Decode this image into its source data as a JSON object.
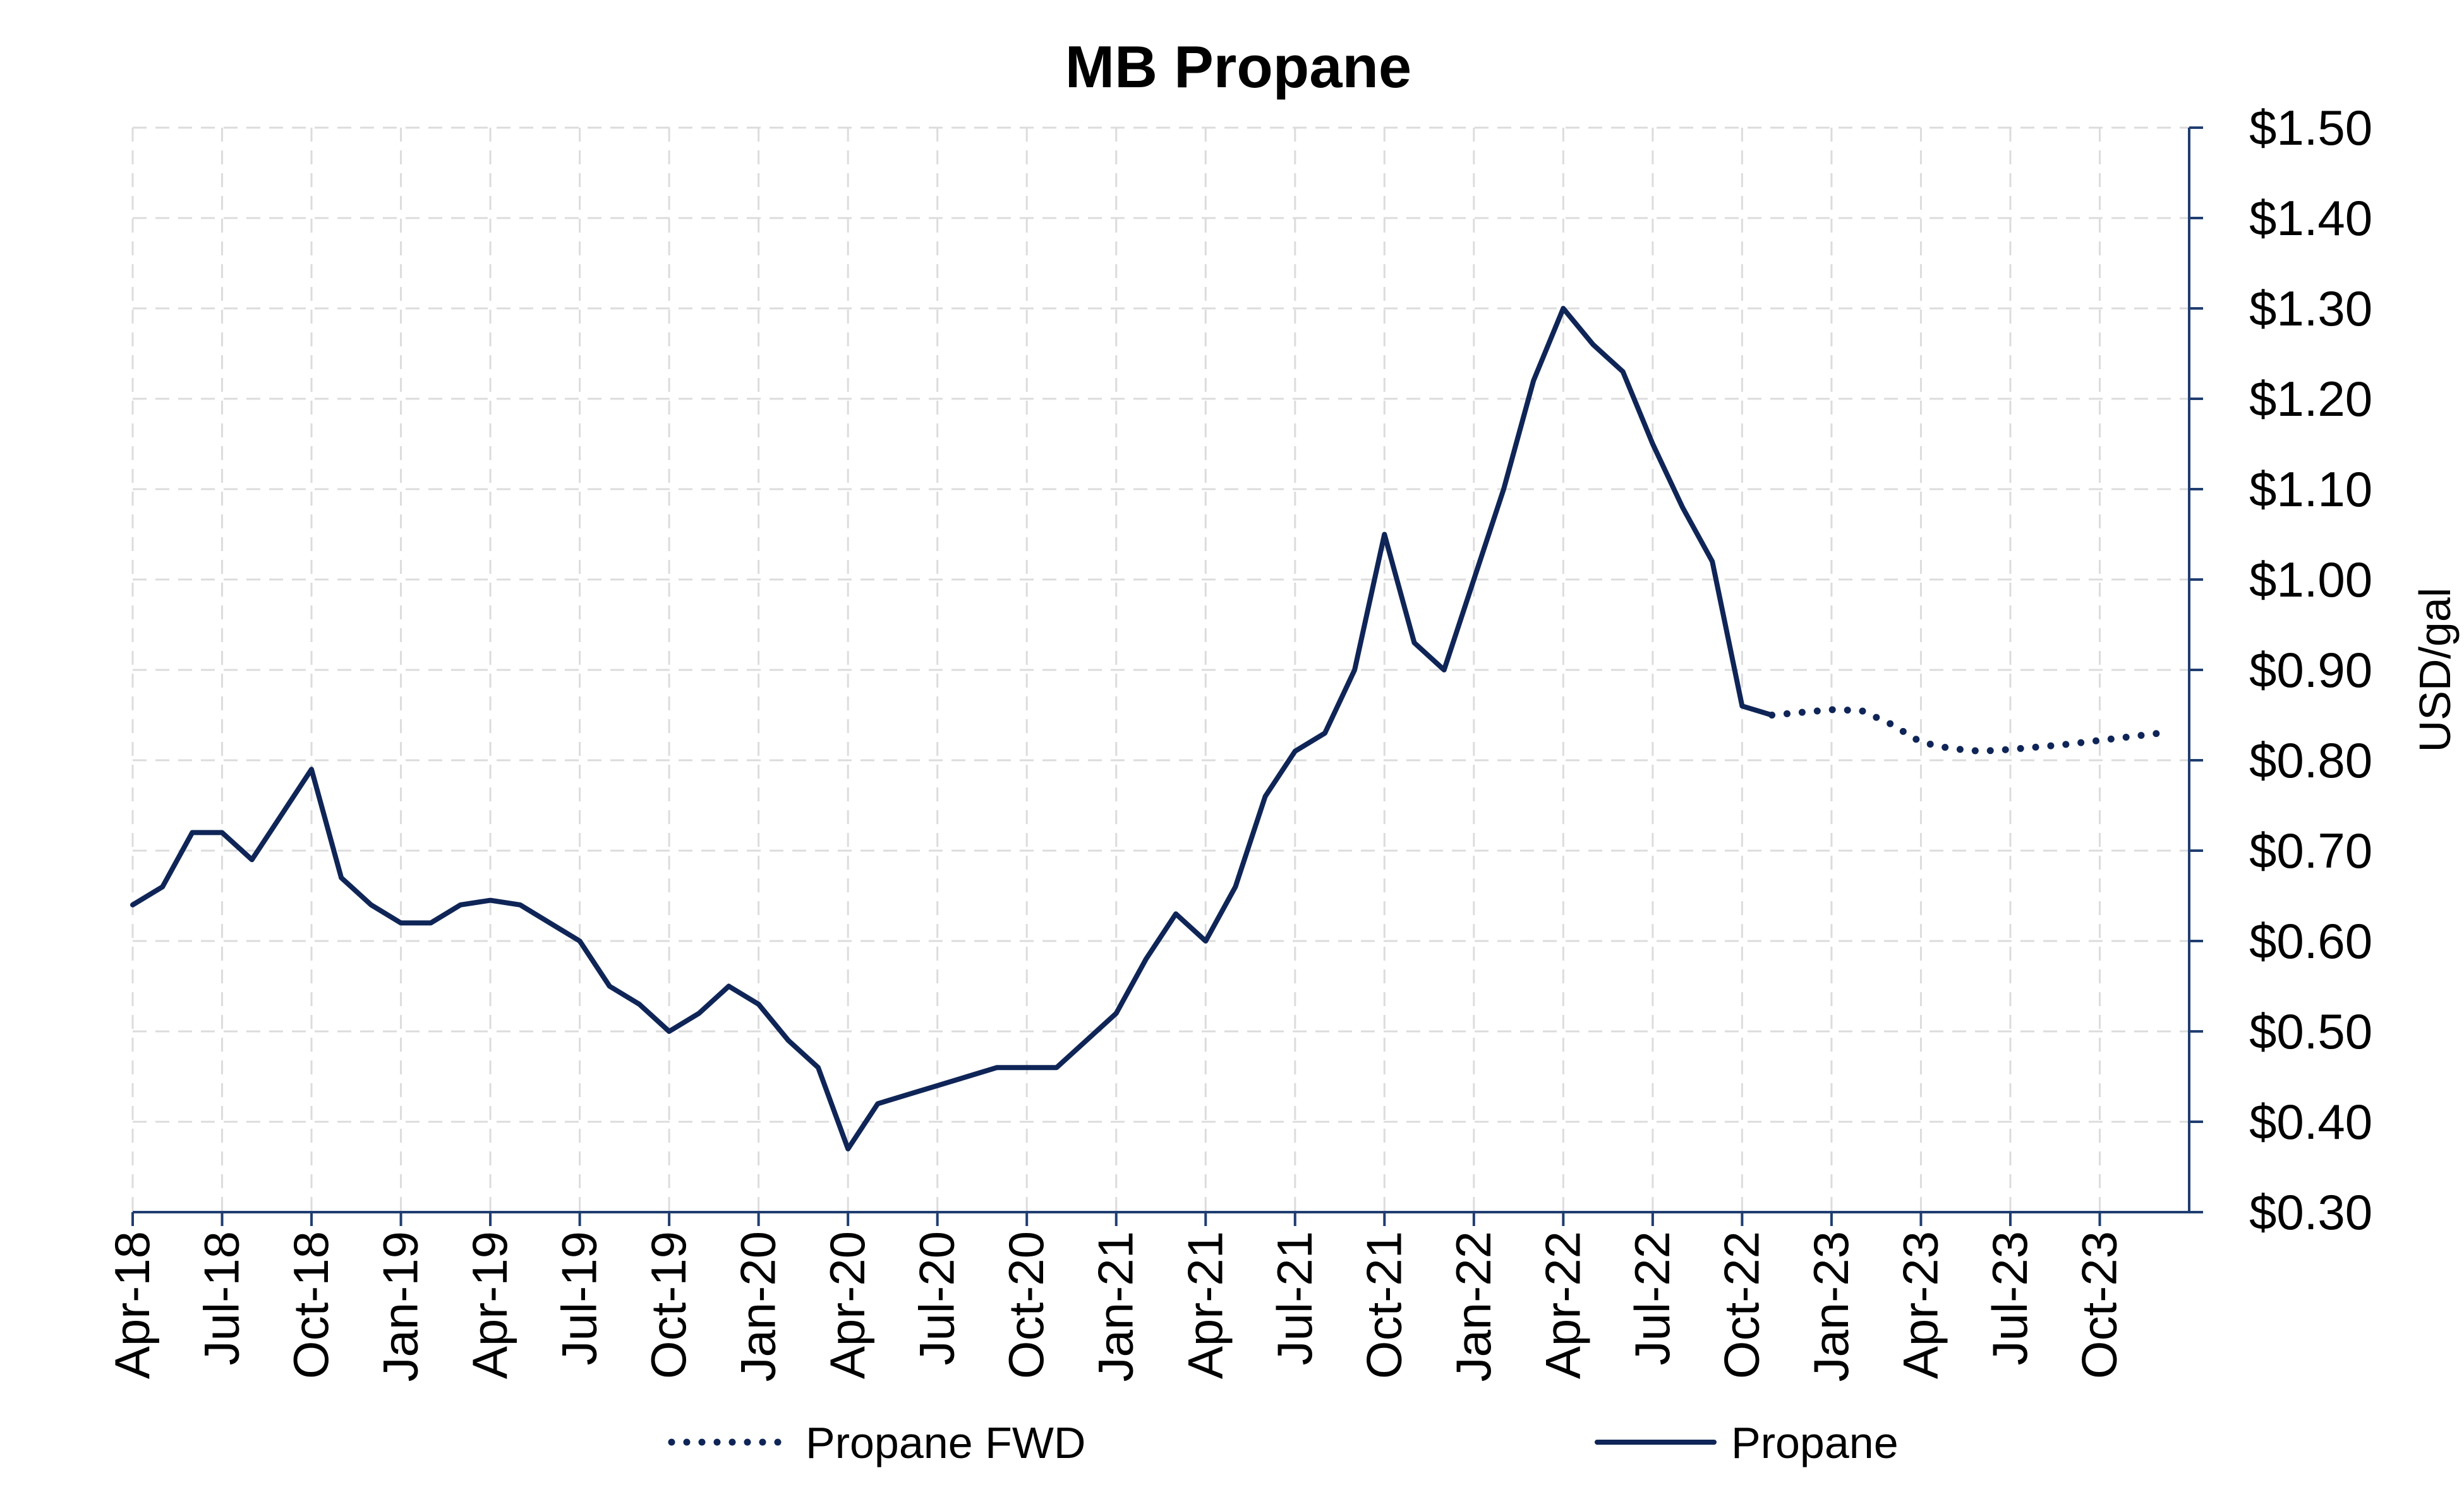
{
  "chart_data": {
    "type": "line",
    "title": "MB Propane",
    "ylabel": "USD/gal",
    "xlabel": "",
    "ylim": [
      0.3,
      1.5
    ],
    "xlim": [
      "2018-04",
      "2024-01"
    ],
    "y_axis_side": "right",
    "grid": true,
    "legend_position": "bottom",
    "y_ticks": [
      "$0.30",
      "$0.40",
      "$0.50",
      "$0.60",
      "$0.70",
      "$0.80",
      "$0.90",
      "$1.00",
      "$1.10",
      "$1.20",
      "$1.30",
      "$1.40",
      "$1.50"
    ],
    "x_ticks": [
      "Apr-18",
      "Jul-18",
      "Oct-18",
      "Jan-19",
      "Apr-19",
      "Jul-19",
      "Oct-19",
      "Jan-20",
      "Apr-20",
      "Jul-20",
      "Oct-20",
      "Jan-21",
      "Apr-21",
      "Jul-21",
      "Oct-21",
      "Jan-22",
      "Apr-22",
      "Jul-22",
      "Oct-22",
      "Jan-23",
      "Apr-23",
      "Jul-23",
      "Oct-23"
    ],
    "series": [
      {
        "name": "Propane FWD",
        "style": "dotted",
        "color": "#0f2557",
        "x": [
          "2022-11",
          "2022-12",
          "2023-01",
          "2023-02",
          "2023-03",
          "2023-04",
          "2023-05",
          "2023-06",
          "2023-07",
          "2023-08",
          "2023-09",
          "2023-10",
          "2023-11",
          "2023-12"
        ],
        "values": [
          0.85,
          0.853,
          0.856,
          0.855,
          0.84,
          0.82,
          0.813,
          0.81,
          0.812,
          0.815,
          0.818,
          0.822,
          0.826,
          0.83
        ]
      },
      {
        "name": "Propane",
        "style": "solid",
        "color": "#0f2557",
        "x": [
          "2018-04",
          "2018-05",
          "2018-06",
          "2018-07",
          "2018-08",
          "2018-09",
          "2018-10",
          "2018-11",
          "2018-12",
          "2019-01",
          "2019-02",
          "2019-03",
          "2019-04",
          "2019-05",
          "2019-06",
          "2019-07",
          "2019-08",
          "2019-09",
          "2019-10",
          "2019-11",
          "2019-12",
          "2020-01",
          "2020-02",
          "2020-03",
          "2020-04",
          "2020-05",
          "2020-06",
          "2020-07",
          "2020-08",
          "2020-09",
          "2020-10",
          "2020-11",
          "2020-12",
          "2021-01",
          "2021-02",
          "2021-03",
          "2021-04",
          "2021-05",
          "2021-06",
          "2021-07",
          "2021-08",
          "2021-09",
          "2021-10",
          "2021-11",
          "2021-12",
          "2022-01",
          "2022-02",
          "2022-03",
          "2022-04",
          "2022-05",
          "2022-06",
          "2022-07",
          "2022-08",
          "2022-09",
          "2022-10",
          "2022-11"
        ],
        "values": [
          0.64,
          0.66,
          0.72,
          0.72,
          0.69,
          0.74,
          0.79,
          0.67,
          0.64,
          0.62,
          0.62,
          0.64,
          0.645,
          0.64,
          0.62,
          0.6,
          0.55,
          0.53,
          0.5,
          0.52,
          0.55,
          0.53,
          0.49,
          0.46,
          0.37,
          0.42,
          0.43,
          0.44,
          0.45,
          0.46,
          0.46,
          0.46,
          0.49,
          0.52,
          0.58,
          0.63,
          0.6,
          0.66,
          0.76,
          0.81,
          0.83,
          0.9,
          1.05,
          0.93,
          0.9,
          1.0,
          1.1,
          1.22,
          1.3,
          1.26,
          1.23,
          1.15,
          1.08,
          1.02,
          0.86,
          0.85
        ]
      }
    ]
  }
}
